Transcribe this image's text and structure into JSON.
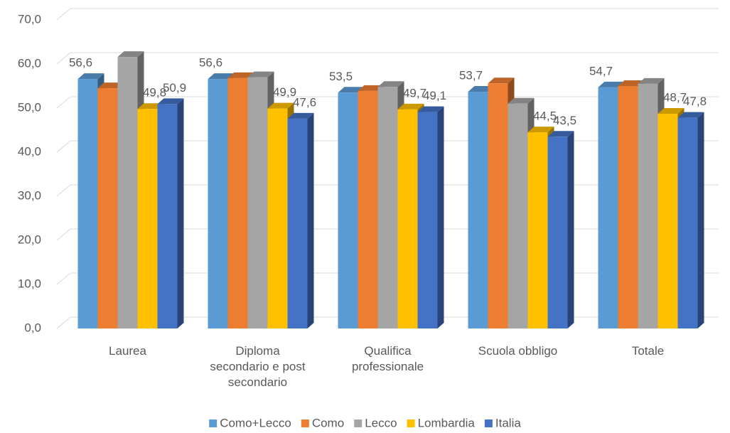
{
  "chart_data": {
    "type": "bar3d",
    "categories": [
      "Laurea",
      "Diploma secondario e post secondario",
      "Qualifica professionale",
      "Scuola obbligo",
      "Totale"
    ],
    "series": [
      {
        "name": "Como+Lecco",
        "color": "#5b9bd5",
        "values": [
          56.6,
          56.6,
          53.5,
          53.7,
          54.7
        ],
        "value_labels": [
          "56,6",
          "56,6",
          "53,5",
          "53,7",
          "54,7"
        ]
      },
      {
        "name": "Como",
        "color": "#ed7d31",
        "values": [
          54.5,
          56.8,
          53.9,
          55.6,
          55.0
        ]
      },
      {
        "name": "Lecco",
        "color": "#a5a5a5",
        "values": [
          61.6,
          57.0,
          54.8,
          51.0,
          55.5
        ]
      },
      {
        "name": "Lombardia",
        "color": "#ffc000",
        "values": [
          49.8,
          49.9,
          49.7,
          44.5,
          48.7
        ],
        "value_labels": [
          "49,8",
          "49,9",
          "49,7",
          "44,5",
          "48,7"
        ]
      },
      {
        "name": "Italia",
        "color": "#4472c4",
        "values": [
          50.9,
          47.6,
          49.1,
          43.5,
          47.8
        ],
        "value_labels": [
          "50,9",
          "47,6",
          "49,1",
          "43,5",
          "47,8"
        ]
      }
    ],
    "ylim": [
      0,
      70
    ],
    "yticks": [
      {
        "value": 0,
        "label": "0,0"
      },
      {
        "value": 10,
        "label": "10,0"
      },
      {
        "value": 20,
        "label": "20,0"
      },
      {
        "value": 30,
        "label": "30,0"
      },
      {
        "value": 40,
        "label": "40,0"
      },
      {
        "value": 50,
        "label": "50,0"
      },
      {
        "value": 60,
        "label": "60,0"
      },
      {
        "value": 70,
        "label": "70,0"
      }
    ],
    "grid": true,
    "legend": "bottom"
  }
}
